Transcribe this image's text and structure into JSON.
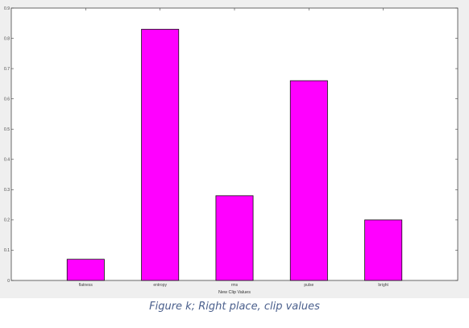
{
  "caption": "Figure k; Right place, clip values",
  "chart_data": {
    "type": "bar",
    "categories": [
      "flatness",
      "entropy",
      "rms",
      "pulse",
      "bright"
    ],
    "values": [
      0.07,
      0.83,
      0.28,
      0.66,
      0.2
    ],
    "title": "",
    "xlabel": "New Clip Values",
    "ylabel": "",
    "ylim": [
      0,
      0.9
    ],
    "yticks": [
      "0",
      "0.1",
      "0.2",
      "0.3",
      "0.4",
      "0.5",
      "0.6",
      "0.7",
      "0.8",
      "0.9"
    ],
    "grid": false,
    "bar_color": "#ff00ff",
    "bar_edge_color": "#111111"
  }
}
